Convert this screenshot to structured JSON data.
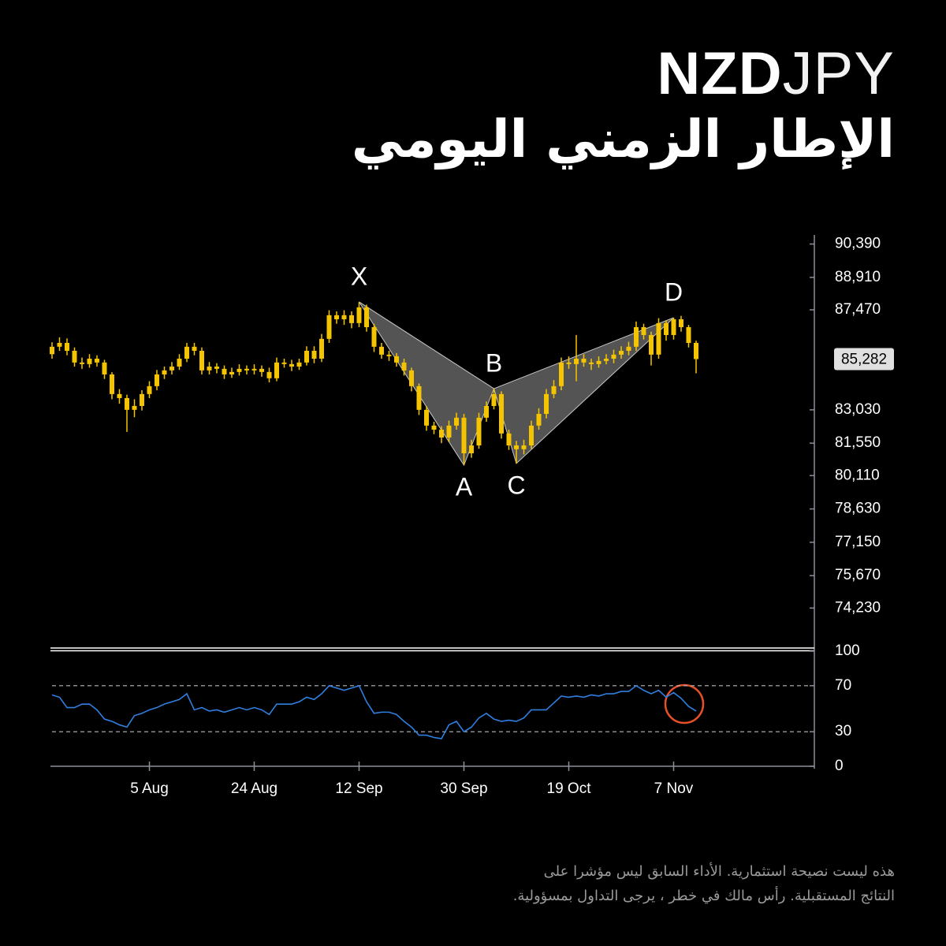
{
  "chart_data": {
    "type": "candlestick",
    "title": [
      "NZD",
      "JPY"
    ],
    "subtitle": "الإطار الزمني اليومي",
    "disclaimer": [
      "هذه ليست نصيحة استثمارية. الأداء السابق ليس مؤشرا على",
      "النتائج المستقبلية. رأس مالك في خطر ، يرجى التداول بمسؤولية."
    ],
    "categories": [
      null,
      null,
      null,
      null,
      null,
      null,
      null,
      null,
      null,
      null,
      null,
      null,
      null,
      "5 Aug",
      null,
      null,
      null,
      null,
      null,
      null,
      null,
      null,
      null,
      null,
      null,
      null,
      null,
      "24 Aug",
      null,
      null,
      null,
      null,
      null,
      null,
      null,
      null,
      null,
      null,
      null,
      null,
      null,
      "12 Sep",
      null,
      null,
      null,
      null,
      null,
      null,
      null,
      null,
      null,
      null,
      null,
      null,
      null,
      "30 Sep",
      null,
      null,
      null,
      null,
      null,
      null,
      null,
      null,
      null,
      null,
      null,
      null,
      null,
      "19 Oct",
      null,
      null,
      null,
      null,
      null,
      null,
      null,
      null,
      null,
      null,
      null,
      null,
      null,
      "7 Nov",
      null,
      null,
      null
    ],
    "open": [
      85500,
      85830,
      86000,
      85650,
      85130,
      85060,
      85300,
      85130,
      84600,
      83730,
      83550,
      83030,
      83200,
      83730,
      84080,
      84600,
      84780,
      84950,
      85300,
      85830,
      85650,
      84780,
      84950,
      84850,
      84600,
      84710,
      84850,
      84780,
      84850,
      84710,
      84430,
      85130,
      85060,
      84950,
      85130,
      85650,
      85300,
      86180,
      87230,
      87050,
      87230,
      86880,
      87580,
      86700,
      85830,
      85480,
      85410,
      85130,
      84780,
      84080,
      83030,
      82330,
      82150,
      81800,
      82330,
      82680,
      81100,
      81450,
      82680,
      83200,
      83730,
      81980,
      81450,
      81280,
      81450,
      82330,
      82850,
      83730,
      84080,
      85130,
      85060,
      85300,
      85130,
      85060,
      85200,
      85300,
      85480,
      85650,
      85830,
      86700,
      86350,
      85480,
      86880,
      86350,
      87050,
      86700,
      86000
    ],
    "high": [
      86030,
      86250,
      86200,
      85800,
      85350,
      85500,
      85450,
      85250,
      84700,
      83950,
      83700,
      83500,
      83900,
      84300,
      84800,
      84950,
      85150,
      85500,
      86000,
      86000,
      85800,
      85150,
      85100,
      85000,
      84900,
      85050,
      85000,
      85050,
      85000,
      84900,
      85350,
      85300,
      85250,
      85300,
      85850,
      85850,
      86400,
      87450,
      87400,
      87450,
      87400,
      87820,
      87700,
      86850,
      86000,
      85650,
      85550,
      85300,
      84900,
      84200,
      83200,
      82500,
      82300,
      82550,
      82900,
      82850,
      81700,
      82900,
      83400,
      83970,
      83850,
      82150,
      81650,
      81700,
      82550,
      83100,
      83950,
      84350,
      85350,
      85400,
      86350,
      85500,
      85300,
      85400,
      85500,
      85700,
      85850,
      86050,
      86950,
      86850,
      86500,
      87100,
      87000,
      87120,
      87200,
      86800,
      86100
    ],
    "low": [
      85300,
      85650,
      85450,
      84950,
      84850,
      84900,
      84950,
      84400,
      83500,
      83300,
      82050,
      82700,
      83000,
      83550,
      83900,
      84400,
      84600,
      84800,
      85150,
      85450,
      84600,
      84600,
      84650,
      84400,
      84450,
      84550,
      84600,
      84600,
      84500,
      84250,
      84300,
      84900,
      84750,
      84800,
      85000,
      85100,
      85150,
      86000,
      86850,
      86800,
      86650,
      86700,
      86500,
      85600,
      85300,
      85200,
      84950,
      84550,
      83850,
      82800,
      82100,
      81950,
      81550,
      81600,
      82150,
      80575,
      80900,
      81300,
      82500,
      83050,
      81750,
      81250,
      80650,
      81050,
      81300,
      82150,
      82650,
      83550,
      83900,
      84850,
      84300,
      84950,
      84800,
      84900,
      85050,
      85100,
      85300,
      85450,
      85650,
      86150,
      85000,
      85300,
      86100,
      86150,
      86500,
      85800,
      84650
    ],
    "close": [
      85830,
      86000,
      85650,
      85130,
      85060,
      85300,
      85130,
      84600,
      83730,
      83550,
      83030,
      83200,
      83730,
      84080,
      84600,
      84780,
      84950,
      85300,
      85830,
      85650,
      84780,
      84950,
      84850,
      84600,
      84710,
      84850,
      84780,
      84850,
      84710,
      84430,
      85130,
      85060,
      84950,
      85130,
      85650,
      85300,
      86180,
      87230,
      87050,
      87230,
      86880,
      87580,
      86700,
      85830,
      85480,
      85410,
      85130,
      84780,
      84080,
      83030,
      82330,
      82150,
      81800,
      82330,
      82680,
      81100,
      81450,
      82680,
      83200,
      83730,
      81980,
      81450,
      81280,
      81450,
      82330,
      82850,
      83730,
      84080,
      85130,
      85060,
      85300,
      85130,
      85060,
      85200,
      85300,
      85480,
      85650,
      85830,
      86700,
      86350,
      85480,
      86880,
      86350,
      87050,
      86700,
      86000,
      85282
    ],
    "color": "#f5c400",
    "last_price_label": "85,282",
    "ylim": [
      72600,
      90640
    ],
    "yticks": [
      {
        "value": 74230,
        "label": "74,230"
      },
      {
        "value": 75670,
        "label": "75,670"
      },
      {
        "value": 77150,
        "label": "77,150"
      },
      {
        "value": 78630,
        "label": "78,630"
      },
      {
        "value": 80110,
        "label": "80,110"
      },
      {
        "value": 81550,
        "label": "81,550"
      },
      {
        "value": 83030,
        "label": "83,030"
      },
      {
        "value": 87470,
        "label": "87,470"
      },
      {
        "value": 88910,
        "label": "88,910"
      },
      {
        "value": 90390,
        "label": "90,390"
      }
    ],
    "pattern": [
      {
        "label": "X",
        "value": 87820
      },
      {
        "label": "A",
        "value": 80575
      },
      {
        "label": "B",
        "value": 83970
      },
      {
        "label": "C",
        "value": 80650
      },
      {
        "label": "D",
        "value": 87120
      }
    ],
    "indicator": {
      "type": "line",
      "values": [
        62,
        60,
        51,
        51,
        54,
        54,
        49,
        41,
        39,
        36,
        34,
        44,
        46,
        49,
        51,
        54,
        56,
        58,
        63,
        49,
        51,
        48,
        49,
        47,
        49,
        51,
        49,
        51,
        49,
        45,
        54,
        54,
        54,
        56,
        60,
        58,
        63,
        70,
        68,
        66,
        68,
        70,
        56,
        46,
        47,
        47,
        45,
        39,
        34,
        27,
        27,
        25,
        24,
        36,
        39,
        30,
        34,
        42,
        46,
        41,
        39,
        40,
        39,
        42,
        49,
        49,
        49,
        55,
        61,
        60,
        61,
        60,
        62,
        61,
        63,
        63,
        65,
        65,
        70,
        66,
        63,
        66,
        60,
        64,
        59,
        52,
        48
      ],
      "color": "#2f7fe0",
      "ylim": [
        0,
        100
      ],
      "yticks": [
        0,
        30,
        70,
        100
      ],
      "levels": [
        30,
        70
      ]
    }
  }
}
